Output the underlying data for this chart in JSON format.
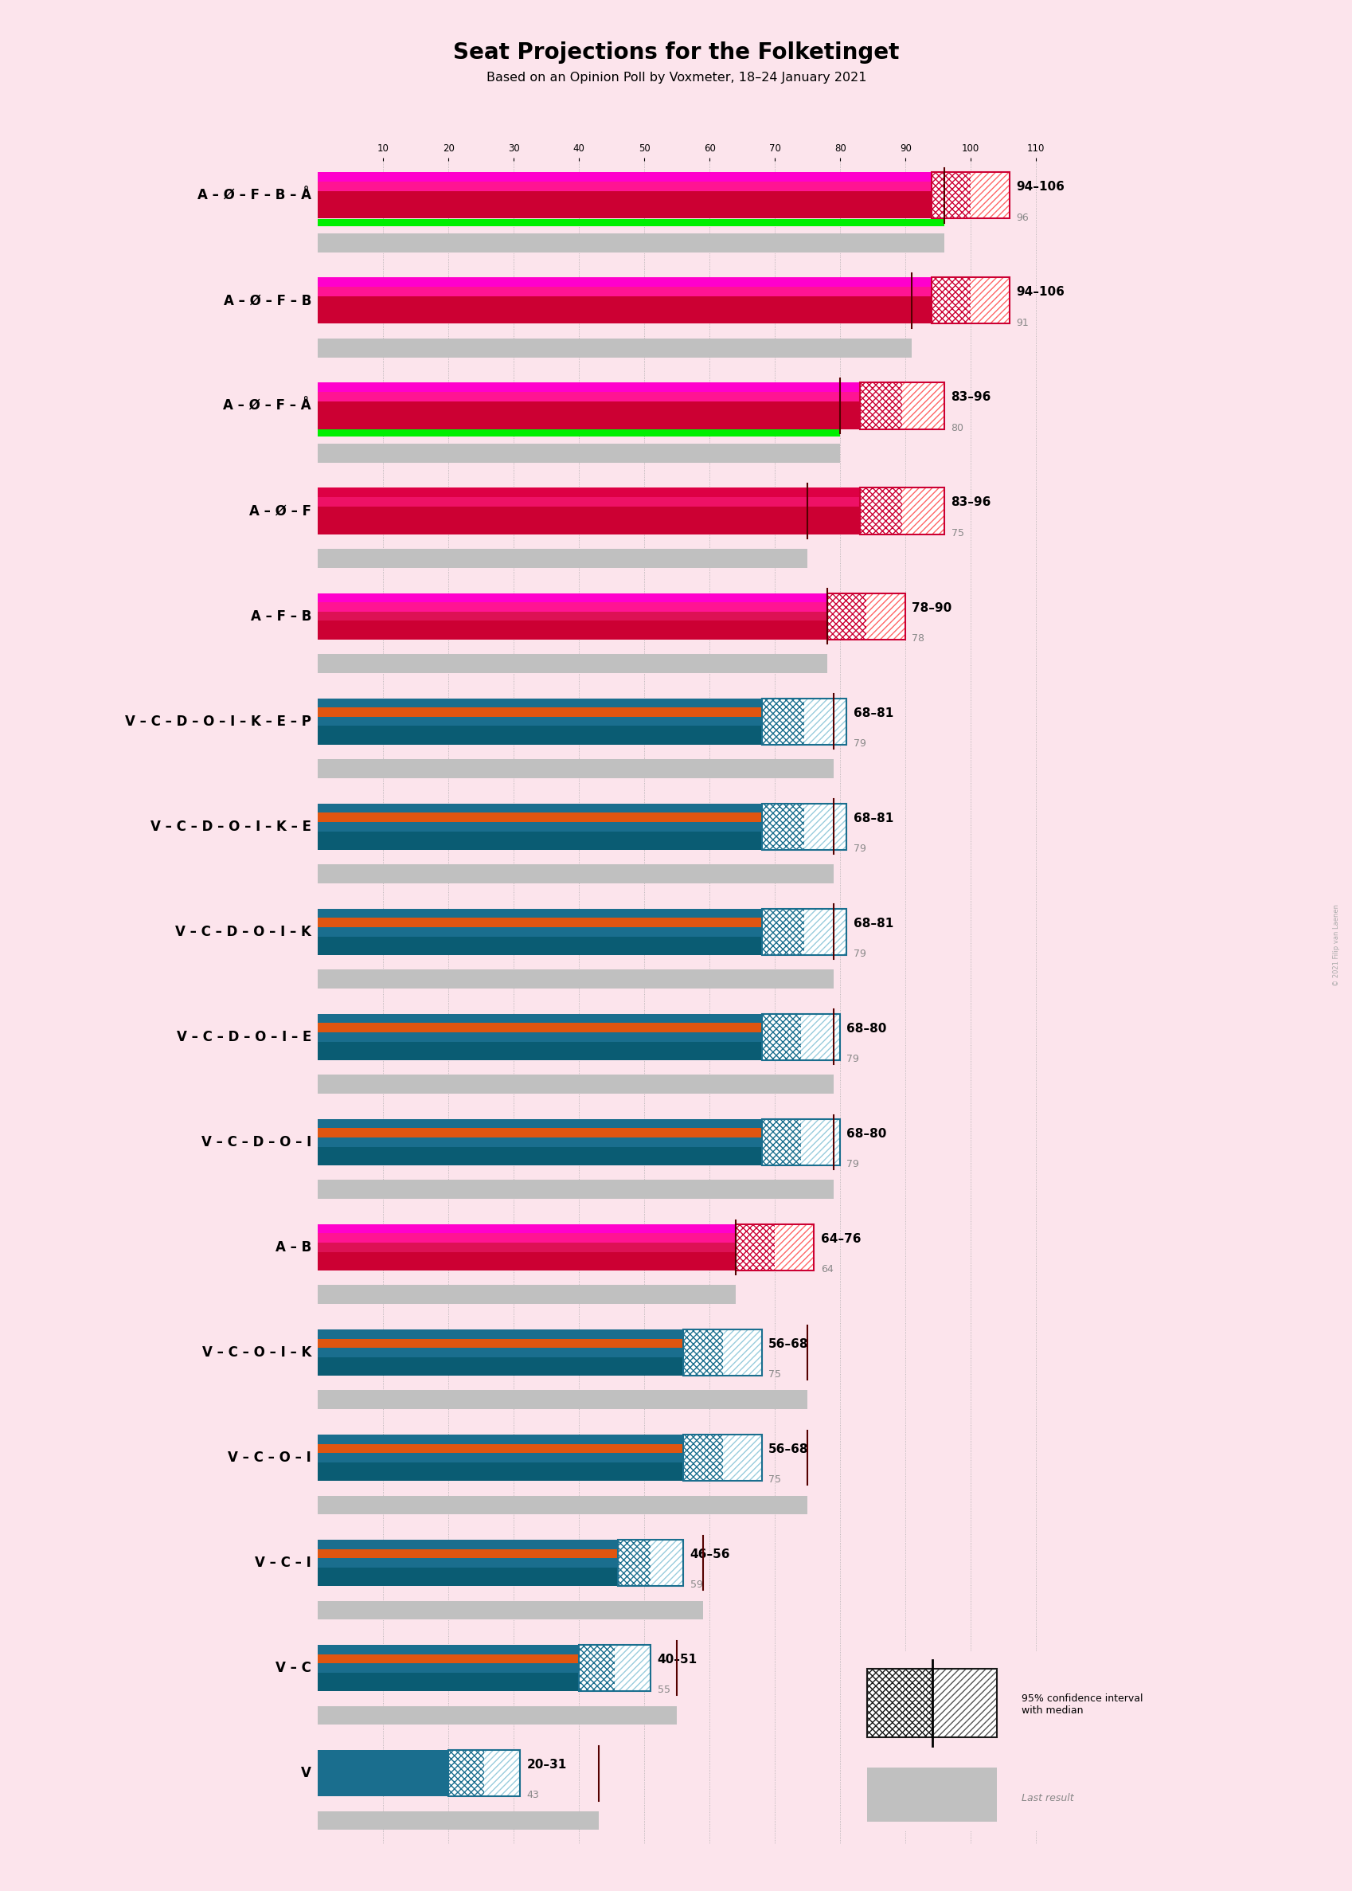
{
  "title": "Seat Projections for the Folketinget",
  "subtitle": "Based on an Opinion Poll by Voxmeter, 18–24 January 2021",
  "watermark": "© 2021 Filip van Laenen",
  "bg_color": "#fce4ec",
  "x_max": 115,
  "rows": [
    {
      "label": "A – Ø – F – B – Å",
      "underline": false,
      "ci_low": 94,
      "ci_high": 106,
      "median": 96,
      "last": 96,
      "band_colors": [
        "#cc0033",
        "#cc0033",
        "#cc0033",
        "#ff1493",
        "#ff00cc"
      ],
      "has_green": true,
      "green_val": 96,
      "ci_hatch_color": "#cc0033",
      "ci_hatch2_color": "#ff6666"
    },
    {
      "label": "A – Ø – F – B",
      "underline": true,
      "ci_low": 94,
      "ci_high": 106,
      "median": 91,
      "last": 91,
      "band_colors": [
        "#cc0033",
        "#cc0033",
        "#cc0033",
        "#ff1493",
        "#ff00cc"
      ],
      "has_green": false,
      "ci_hatch_color": "#cc0033",
      "ci_hatch2_color": "#ff6666"
    },
    {
      "label": "A – Ø – F – Å",
      "underline": false,
      "ci_low": 83,
      "ci_high": 96,
      "median": 80,
      "last": 80,
      "band_colors": [
        "#cc0033",
        "#cc0033",
        "#cc0033",
        "#ff1493",
        "#ff00cc"
      ],
      "has_green": true,
      "green_val": 80,
      "ci_hatch_color": "#cc0033",
      "ci_hatch2_color": "#ff6666"
    },
    {
      "label": "A – Ø – F",
      "underline": false,
      "ci_low": 83,
      "ci_high": 96,
      "median": 75,
      "last": 75,
      "band_colors": [
        "#cc0033",
        "#cc0033",
        "#cc0033",
        "#ee1166",
        "#dd0044"
      ],
      "has_green": false,
      "ci_hatch_color": "#cc0033",
      "ci_hatch2_color": "#ff6666"
    },
    {
      "label": "A – F – B",
      "underline": false,
      "ci_low": 78,
      "ci_high": 90,
      "median": 78,
      "last": 78,
      "band_colors": [
        "#cc0033",
        "#cc0033",
        "#dd1155",
        "#ff1493",
        "#ff00cc"
      ],
      "has_green": false,
      "ci_hatch_color": "#cc0033",
      "ci_hatch2_color": "#ff6666"
    },
    {
      "label": "V – C – D – O – I – K – E – P",
      "underline": false,
      "ci_low": 68,
      "ci_high": 81,
      "median": 79,
      "last": 79,
      "band_colors": [
        "#0a5c73",
        "#0a5c73",
        "#1a6e8e",
        "#e05510",
        "#1a6e8e"
      ],
      "has_green": false,
      "ci_hatch_color": "#1a6e8e",
      "ci_hatch2_color": "#99ccdd"
    },
    {
      "label": "V – C – D – O – I – K – E",
      "underline": false,
      "ci_low": 68,
      "ci_high": 81,
      "median": 79,
      "last": 79,
      "band_colors": [
        "#0a5c73",
        "#0a5c73",
        "#1a6e8e",
        "#e05510",
        "#1a6e8e"
      ],
      "has_green": false,
      "ci_hatch_color": "#1a6e8e",
      "ci_hatch2_color": "#99ccdd"
    },
    {
      "label": "V – C – D – O – I – K",
      "underline": false,
      "ci_low": 68,
      "ci_high": 81,
      "median": 79,
      "last": 79,
      "band_colors": [
        "#0a5c73",
        "#0a5c73",
        "#1a6e8e",
        "#e05510",
        "#1a6e8e"
      ],
      "has_green": false,
      "ci_hatch_color": "#1a6e8e",
      "ci_hatch2_color": "#99ccdd"
    },
    {
      "label": "V – C – D – O – I – E",
      "underline": false,
      "ci_low": 68,
      "ci_high": 80,
      "median": 79,
      "last": 79,
      "band_colors": [
        "#0a5c73",
        "#0a5c73",
        "#1a6e8e",
        "#e05510",
        "#1a6e8e"
      ],
      "has_green": false,
      "ci_hatch_color": "#1a6e8e",
      "ci_hatch2_color": "#99ccdd"
    },
    {
      "label": "V – C – D – O – I",
      "underline": false,
      "ci_low": 68,
      "ci_high": 80,
      "median": 79,
      "last": 79,
      "band_colors": [
        "#0a5c73",
        "#0a5c73",
        "#1a6e8e",
        "#e05510",
        "#1a6e8e"
      ],
      "has_green": false,
      "ci_hatch_color": "#1a6e8e",
      "ci_hatch2_color": "#99ccdd"
    },
    {
      "label": "A – B",
      "underline": false,
      "ci_low": 64,
      "ci_high": 76,
      "median": 64,
      "last": 64,
      "band_colors": [
        "#cc0033",
        "#cc0033",
        "#dd1155",
        "#ff1493",
        "#ff00cc"
      ],
      "has_green": false,
      "ci_hatch_color": "#cc0033",
      "ci_hatch2_color": "#ff6666"
    },
    {
      "label": "V – C – O – I – K",
      "underline": false,
      "ci_low": 56,
      "ci_high": 68,
      "median": 75,
      "last": 75,
      "band_colors": [
        "#0a5c73",
        "#0a5c73",
        "#1a6e8e",
        "#e05510",
        "#1a6e8e"
      ],
      "has_green": false,
      "ci_hatch_color": "#1a6e8e",
      "ci_hatch2_color": "#99ccdd"
    },
    {
      "label": "V – C – O – I",
      "underline": false,
      "ci_low": 56,
      "ci_high": 68,
      "median": 75,
      "last": 75,
      "band_colors": [
        "#0a5c73",
        "#0a5c73",
        "#1a6e8e",
        "#e05510",
        "#1a6e8e"
      ],
      "has_green": false,
      "ci_hatch_color": "#1a6e8e",
      "ci_hatch2_color": "#99ccdd"
    },
    {
      "label": "V – C – I",
      "underline": false,
      "ci_low": 46,
      "ci_high": 56,
      "median": 59,
      "last": 59,
      "band_colors": [
        "#0a5c73",
        "#0a5c73",
        "#1a6e8e",
        "#e05510",
        "#1a6e8e"
      ],
      "has_green": false,
      "ci_hatch_color": "#1a6e8e",
      "ci_hatch2_color": "#99ccdd"
    },
    {
      "label": "V – C",
      "underline": false,
      "ci_low": 40,
      "ci_high": 51,
      "median": 55,
      "last": 55,
      "band_colors": [
        "#0a5c73",
        "#0a5c73",
        "#1a6e8e",
        "#e05510",
        "#1a6e8e"
      ],
      "has_green": false,
      "ci_hatch_color": "#1a6e8e",
      "ci_hatch2_color": "#99ccdd"
    },
    {
      "label": "V",
      "underline": false,
      "ci_low": 20,
      "ci_high": 31,
      "median": 43,
      "last": 43,
      "band_colors": [
        "#1a6e8e",
        "#1a6e8e",
        "#1a6e8e",
        "#1a6e8e",
        "#1a6e8e"
      ],
      "has_green": false,
      "ci_hatch_color": "#1a6e8e",
      "ci_hatch2_color": "#99ccdd"
    }
  ],
  "legend_ci_color": "#1a1a1a",
  "legend_last_color": "#c0c0c0"
}
